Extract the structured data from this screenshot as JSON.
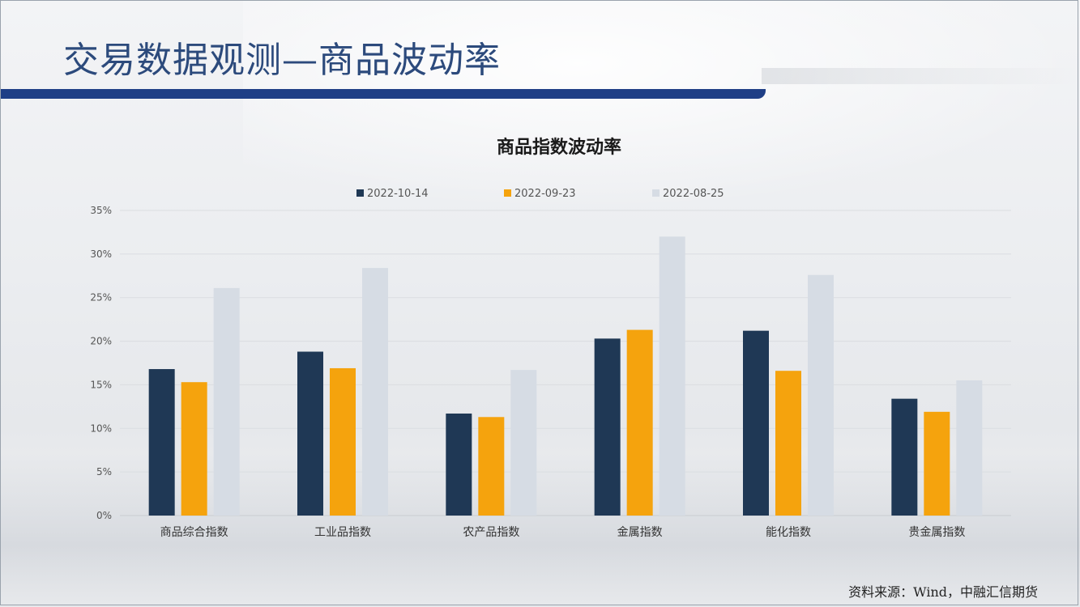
{
  "slide": {
    "title": "交易数据观测—商品波动率",
    "source": "资料来源：Wind，中融汇信期货"
  },
  "chart_data": {
    "type": "bar",
    "title": "商品指数波动率",
    "categories": [
      "商品综合指数",
      "工业品指数",
      "农产品指数",
      "金属指数",
      "能化指数",
      "贵金属指数"
    ],
    "series": [
      {
        "name": "2022-10-14",
        "color": "#1f3855",
        "values": [
          16.8,
          18.8,
          11.7,
          20.3,
          21.2,
          13.4
        ]
      },
      {
        "name": "2022-09-23",
        "color": "#f5a30d",
        "values": [
          15.3,
          16.9,
          11.3,
          21.3,
          16.6,
          11.9
        ]
      },
      {
        "name": "2022-08-25",
        "color": "#d6dce4",
        "values": [
          26.1,
          28.4,
          16.7,
          32.0,
          27.6,
          15.5
        ]
      }
    ],
    "ylim": [
      0,
      35
    ],
    "yticks": [
      "0%",
      "5%",
      "10%",
      "15%",
      "20%",
      "25%",
      "30%",
      "35%"
    ],
    "grid": true,
    "legend": "top"
  }
}
